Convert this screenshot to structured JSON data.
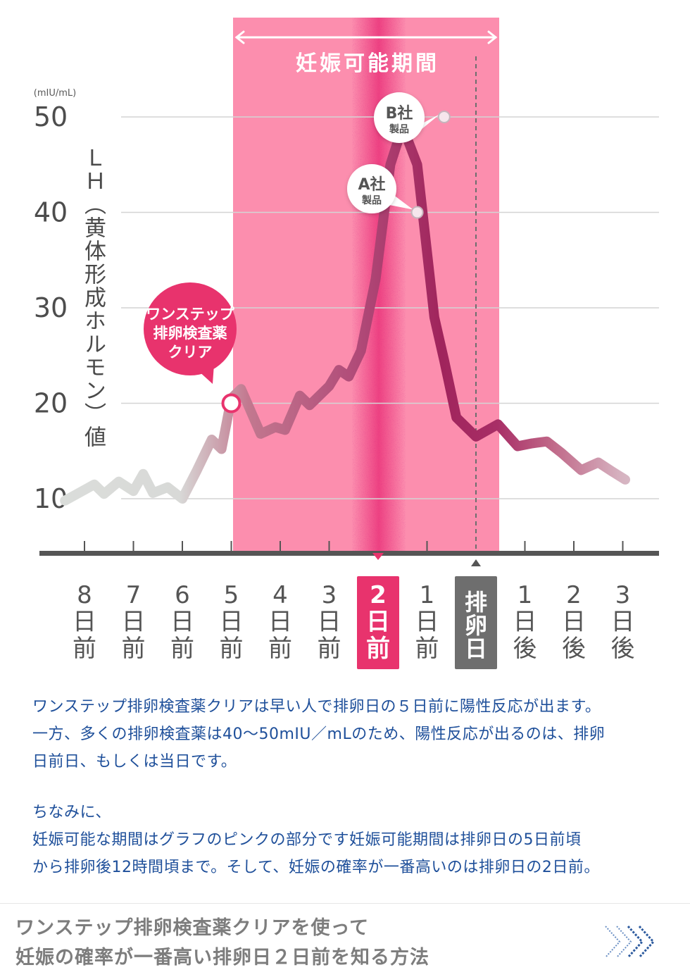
{
  "chart_data": {
    "type": "line",
    "unit_label": "(mIU/mL)",
    "ylabel": "ＬＨ（黄体形成ホルモン）値",
    "yticks": [
      10,
      20,
      30,
      40,
      50
    ],
    "ylim": [
      4,
      54
    ],
    "grid": true,
    "categories": [
      {
        "num": "8",
        "unit": "日前"
      },
      {
        "num": "7",
        "unit": "日前"
      },
      {
        "num": "6",
        "unit": "日前"
      },
      {
        "num": "5",
        "unit": "日前"
      },
      {
        "num": "4",
        "unit": "日前"
      },
      {
        "num": "3",
        "unit": "日前"
      },
      {
        "num": "2",
        "unit": "日前",
        "highlight": "pink"
      },
      {
        "num": "1",
        "unit": "日前"
      },
      {
        "num": "",
        "unit": "排卵日",
        "highlight": "gray"
      },
      {
        "num": "1",
        "unit": "日後"
      },
      {
        "num": "2",
        "unit": "日後"
      },
      {
        "num": "3",
        "unit": "日後"
      }
    ],
    "series": [
      {
        "x": [
          -8.4,
          -7.8,
          -7.6,
          -7.3,
          -7.0,
          -6.8,
          -6.6,
          -6.3,
          -6.0,
          -5.7,
          -5.4,
          -5.2,
          -5.0,
          -4.8,
          -4.4,
          -4.1,
          -3.9,
          -3.6,
          -3.4,
          -3.0,
          -2.8,
          -2.6,
          -2.35,
          -2.05,
          -1.75,
          -1.5,
          -1.2,
          -0.85,
          -0.65,
          -0.4,
          0.0,
          0.45,
          0.85,
          1.15,
          1.45,
          1.75,
          2.15,
          2.5,
          2.8,
          3.05
        ],
        "y": [
          9.8,
          11.5,
          10.5,
          11.8,
          10.8,
          12.6,
          10.6,
          11.2,
          10.0,
          13.0,
          16.2,
          15.2,
          20.5,
          21.5,
          16.8,
          17.5,
          17.2,
          20.8,
          19.8,
          21.8,
          23.5,
          22.8,
          25.5,
          33.0,
          45.0,
          49.0,
          45.0,
          29.0,
          24.5,
          18.5,
          16.5,
          17.8,
          15.5,
          15.8,
          16.0,
          14.8,
          13.0,
          13.8,
          12.8,
          12.0
        ]
      }
    ],
    "fertile_window": {
      "label": "妊娠可能期間",
      "from_day": -5,
      "to_day": 0.5
    },
    "markers": [
      {
        "day": -5,
        "value": 20,
        "label": [
          "ワンステップ",
          "排卵検査薬",
          "クリア"
        ]
      },
      {
        "day": -1.2,
        "value": 40,
        "label": [
          "A社",
          "製品"
        ]
      },
      {
        "day": -0.65,
        "value": 50,
        "label": [
          "B社",
          "製品"
        ]
      }
    ]
  },
  "description": {
    "paragraph1": [
      "ワンステップ排卵検査薬クリアは早い人で排卵日の５日前に陽性反応が出ます。",
      "一方、多くの排卵検査薬は40〜50mIU／mLのため、陽性反応が出るのは、排卵",
      "日前日、もしくは当日です。"
    ],
    "paragraph2": [
      "ちなみに、",
      "妊娠可能な期間はグラフのピンクの部分です妊娠可能期間は排卵日の5日前頃",
      "から排卵後12時間頃まで。そして、妊娠の確率が一番高いのは排卵日の2日前。"
    ]
  },
  "footer_link": {
    "line1": "ワンステップ排卵検査薬クリアを使って",
    "line2": "妊娠の確率が一番高い排卵日２日前を知る方法",
    "icon": "chevron-right-icon",
    "color": "#7d7d7d"
  },
  "colors": {
    "fertile": "#fc8eae",
    "line_dark": "#a82e66",
    "line_light": "#d5d9d6",
    "marker_pink": "#e8336d",
    "ovulation_badge": "#6e6e6e",
    "text_blue": "#1e4f9a"
  }
}
